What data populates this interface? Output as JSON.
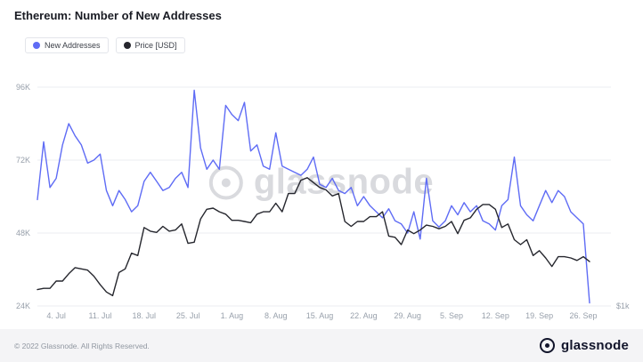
{
  "header": {
    "title": "Ethereum: Number of New Addresses"
  },
  "legend": [
    {
      "label": "New Addresses",
      "color": "#5f6cf5"
    },
    {
      "label": "Price [USD]",
      "color": "#26272e"
    }
  ],
  "watermark": "glassnode",
  "footer": {
    "copyright": "© 2022 Glassnode. All Rights Reserved.",
    "brand": "glassnode"
  },
  "chart_data": {
    "type": "line",
    "title": "Ethereum: Number of New Addresses",
    "grid": "horizontal",
    "legend_position": "top-left",
    "x_tick_labels": [
      "4. Jul",
      "11. Jul",
      "18. Jul",
      "25. Jul",
      "1. Aug",
      "8. Aug",
      "15. Aug",
      "22. Aug",
      "29. Aug",
      "5. Sep",
      "12. Sep",
      "19. Sep",
      "26. Sep"
    ],
    "x_tick_indices": [
      3,
      10,
      17,
      24,
      31,
      38,
      45,
      52,
      59,
      66,
      73,
      80,
      87
    ],
    "y_axis": {
      "tick_labels": [
        "24K",
        "48K",
        "72K",
        "96K"
      ],
      "tick_values": [
        24000,
        48000,
        72000,
        96000
      ],
      "ylim": [
        20000,
        102000
      ]
    },
    "y2_axis": {
      "tick_labels": [
        "$1k"
      ]
    },
    "series": [
      {
        "name": "New Addresses",
        "axis": "left",
        "color": "#5f6cf5",
        "values": [
          59000,
          78000,
          63000,
          66000,
          77000,
          84000,
          80000,
          77000,
          71000,
          72000,
          74000,
          62000,
          57000,
          62000,
          59000,
          55000,
          57000,
          65000,
          68000,
          65000,
          62000,
          63000,
          66000,
          68000,
          63000,
          95000,
          76000,
          69000,
          72000,
          69000,
          90000,
          87000,
          85000,
          91000,
          75000,
          77000,
          70000,
          69000,
          81000,
          70000,
          69000,
          68000,
          67000,
          69000,
          73000,
          64000,
          63000,
          66000,
          62000,
          61000,
          63000,
          57000,
          60000,
          57000,
          55000,
          53000,
          56000,
          52000,
          51000,
          48000,
          55000,
          46000,
          66000,
          52000,
          50000,
          52000,
          57000,
          54000,
          58000,
          55000,
          57000,
          52000,
          51000,
          49000,
          57000,
          59000,
          73000,
          57000,
          54000,
          52000,
          57000,
          62000,
          58000,
          62000,
          60000,
          55000,
          53000,
          51000,
          25000
        ]
      },
      {
        "name": "Price [USD]",
        "axis": "right",
        "color": "#26272e",
        "values": [
          1060,
          1070,
          1070,
          1130,
          1130,
          1190,
          1240,
          1230,
          1220,
          1170,
          1100,
          1040,
          1010,
          1200,
          1230,
          1360,
          1340,
          1570,
          1540,
          1530,
          1580,
          1540,
          1550,
          1600,
          1440,
          1450,
          1640,
          1720,
          1730,
          1700,
          1680,
          1630,
          1630,
          1620,
          1610,
          1680,
          1700,
          1700,
          1770,
          1700,
          1850,
          1850,
          1960,
          1980,
          1940,
          1900,
          1880,
          1830,
          1850,
          1620,
          1580,
          1620,
          1620,
          1660,
          1660,
          1700,
          1500,
          1490,
          1430,
          1550,
          1520,
          1550,
          1590,
          1580,
          1560,
          1580,
          1620,
          1520,
          1630,
          1650,
          1720,
          1760,
          1760,
          1720,
          1570,
          1600,
          1470,
          1430,
          1470,
          1340,
          1380,
          1320,
          1250,
          1330,
          1330,
          1320,
          1300,
          1330,
          1290
        ]
      }
    ]
  }
}
